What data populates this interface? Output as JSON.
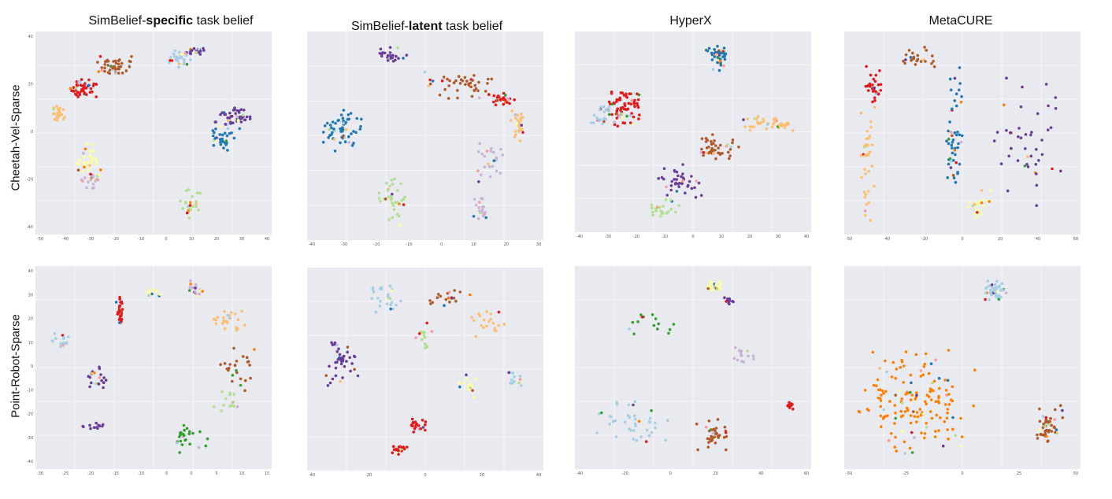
{
  "figure": {
    "columns": [
      {
        "prefix": "SimBelief-",
        "bold": "specific",
        "suffix": " task belief"
      },
      {
        "prefix": "SimBelief-",
        "bold": "latent",
        "suffix": " task belief"
      },
      {
        "prefix": "HyperX",
        "bold": "",
        "suffix": ""
      },
      {
        "prefix": "MetaCURE",
        "bold": "",
        "suffix": ""
      }
    ],
    "rows": [
      "Cheetah-Vel-Sparse",
      "Point-Robot-Sparse"
    ]
  },
  "palette": [
    "#a6cee3",
    "#1f78b4",
    "#b2df8a",
    "#33a02c",
    "#fb9a99",
    "#e31a1c",
    "#fdbf6f",
    "#ff7f00",
    "#cab2d6",
    "#6a3d9a",
    "#ffff99",
    "#b15928"
  ],
  "chart_data": [
    {
      "type": "scatter",
      "title": "Cheetah-Vel-Sparse / SimBelief-specific task belief",
      "xticks": [
        "-50",
        "-40",
        "-30",
        "-20",
        "-10",
        "0",
        "10",
        "20",
        "30",
        "40"
      ],
      "yticks": [
        "40",
        "20",
        "0",
        "-20",
        "-40"
      ],
      "clusters": [
        {
          "c": 11,
          "x": [
            -28,
            -10
          ],
          "y": [
            23,
            33
          ],
          "n": 45
        },
        {
          "c": 5,
          "x": [
            -40,
            -28
          ],
          "y": [
            12,
            22
          ],
          "n": 50
        },
        {
          "c": 6,
          "x": [
            -48,
            -42
          ],
          "y": [
            0,
            8
          ],
          "n": 25
        },
        {
          "c": 0,
          "x": [
            3,
            15
          ],
          "y": [
            27,
            37
          ],
          "n": 30
        },
        {
          "c": 9,
          "x": [
            10,
            20
          ],
          "y": [
            33,
            38
          ],
          "n": 20
        },
        {
          "c": 9,
          "x": [
            22,
            42
          ],
          "y": [
            -2,
            8
          ],
          "n": 45
        },
        {
          "c": 1,
          "x": [
            22,
            35
          ],
          "y": [
            -15,
            -2
          ],
          "n": 35
        },
        {
          "c": 10,
          "x": [
            -38,
            -25
          ],
          "y": [
            -30,
            -10
          ],
          "n": 35
        },
        {
          "c": 8,
          "x": [
            -35,
            -27
          ],
          "y": [
            -35,
            -25
          ],
          "n": 20
        },
        {
          "c": 2,
          "x": [
            8,
            18
          ],
          "y": [
            -50,
            -33
          ],
          "n": 25
        }
      ]
    },
    {
      "type": "scatter",
      "title": "Cheetah-Vel-Sparse / SimBelief-latent task belief",
      "xticks": [
        "-40",
        "-30",
        "-20",
        "-10",
        "0",
        "10",
        "20",
        "30"
      ],
      "yticks": [],
      "clusters": [
        {
          "c": 9,
          "x": [
            -22,
            -10
          ],
          "y": [
            32,
            40
          ],
          "n": 25
        },
        {
          "c": 11,
          "x": [
            -5,
            20
          ],
          "y": [
            15,
            28
          ],
          "n": 45
        },
        {
          "c": 5,
          "x": [
            18,
            28
          ],
          "y": [
            12,
            18
          ],
          "n": 25
        },
        {
          "c": 6,
          "x": [
            26,
            32
          ],
          "y": [
            -5,
            10
          ],
          "n": 25
        },
        {
          "c": 8,
          "x": [
            14,
            24
          ],
          "y": [
            -25,
            -5
          ],
          "n": 25
        },
        {
          "c": 8,
          "x": [
            12,
            18
          ],
          "y": [
            -45,
            -25
          ],
          "n": 20
        },
        {
          "c": 1,
          "x": [
            -42,
            -28
          ],
          "y": [
            -10,
            10
          ],
          "n": 60
        },
        {
          "c": 2,
          "x": [
            -22,
            -12
          ],
          "y": [
            -45,
            -20
          ],
          "n": 35
        }
      ]
    },
    {
      "type": "scatter",
      "title": "Cheetah-Vel-Sparse / HyperX",
      "xticks": [
        "-40",
        "-30",
        "-20",
        "-10",
        "0",
        "10",
        "20",
        "30",
        "40"
      ],
      "yticks": [],
      "clusters": [
        {
          "c": 1,
          "x": [
            5,
            15
          ],
          "y": [
            35,
            48
          ],
          "n": 40
        },
        {
          "c": 5,
          "x": [
            -35,
            -20
          ],
          "y": [
            5,
            25
          ],
          "n": 70
        },
        {
          "c": 0,
          "x": [
            -40,
            -32
          ],
          "y": [
            5,
            18
          ],
          "n": 25
        },
        {
          "c": 6,
          "x": [
            20,
            40
          ],
          "y": [
            2,
            10
          ],
          "n": 40
        },
        {
          "c": 11,
          "x": [
            0,
            20
          ],
          "y": [
            -15,
            0
          ],
          "n": 45
        },
        {
          "c": 9,
          "x": [
            -15,
            5
          ],
          "y": [
            -35,
            -15
          ],
          "n": 40
        },
        {
          "c": 2,
          "x": [
            -20,
            -5
          ],
          "y": [
            -45,
            -35
          ],
          "n": 25
        }
      ]
    },
    {
      "type": "scatter",
      "title": "Cheetah-Vel-Sparse / MetaCURE",
      "xticks": [
        "-50",
        "-40",
        "-20",
        "0",
        "20",
        "40",
        "60"
      ],
      "yticks": [],
      "clusters": [
        {
          "c": 5,
          "x": [
            -50,
            -40
          ],
          "y": [
            10,
            30
          ],
          "n": 30
        },
        {
          "c": 11,
          "x": [
            -30,
            -10
          ],
          "y": [
            30,
            40
          ],
          "n": 25
        },
        {
          "c": 1,
          "x": [
            -5,
            5
          ],
          "y": [
            -40,
            30
          ],
          "n": 50
        },
        {
          "c": 9,
          "x": [
            20,
            60
          ],
          "y": [
            -40,
            30
          ],
          "n": 45
        },
        {
          "c": 6,
          "x": [
            -52,
            -45
          ],
          "y": [
            -45,
            10
          ],
          "n": 35
        },
        {
          "c": 10,
          "x": [
            5,
            20
          ],
          "y": [
            -45,
            -30
          ],
          "n": 25
        }
      ]
    },
    {
      "type": "scatter",
      "title": "Point-Robot-Sparse / SimBelief-specific task belief",
      "xticks": [
        "-30",
        "-25",
        "-20",
        "-15",
        "-10",
        "-5",
        "0",
        "5",
        "10",
        "15"
      ],
      "yticks": [
        "40",
        "30",
        "20",
        "10",
        "0",
        "-10",
        "-20",
        "-30",
        "-40"
      ],
      "clusters": [
        {
          "c": 5,
          "x": [
            -15,
            -13
          ],
          "y": [
            18,
            32
          ],
          "n": 30
        },
        {
          "c": 10,
          "x": [
            -8,
            -4
          ],
          "y": [
            30,
            35
          ],
          "n": 12
        },
        {
          "c": 8,
          "x": [
            2,
            6
          ],
          "y": [
            30,
            38
          ],
          "n": 20
        },
        {
          "c": 6,
          "x": [
            8,
            16
          ],
          "y": [
            16,
            26
          ],
          "n": 25
        },
        {
          "c": 11,
          "x": [
            10,
            18
          ],
          "y": [
            -10,
            10
          ],
          "n": 25
        },
        {
          "c": 0,
          "x": [
            -30,
            -25
          ],
          "y": [
            8,
            15
          ],
          "n": 15
        },
        {
          "c": 9,
          "x": [
            -22,
            -17
          ],
          "y": [
            -10,
            0
          ],
          "n": 20
        },
        {
          "c": 9,
          "x": [
            -24,
            -18
          ],
          "y": [
            -28,
            -24
          ],
          "n": 12
        },
        {
          "c": 3,
          "x": [
            -4,
            8
          ],
          "y": [
            -38,
            -25
          ],
          "n": 25
        },
        {
          "c": 2,
          "x": [
            8,
            16
          ],
          "y": [
            -20,
            -10
          ],
          "n": 15
        }
      ]
    },
    {
      "type": "scatter",
      "title": "Point-Robot-Sparse / SimBelief-latent task belief",
      "xticks": [
        "-40",
        "-20",
        "0",
        "20",
        "40"
      ],
      "yticks": [],
      "clusters": [
        {
          "c": 9,
          "x": [
            -40,
            -25
          ],
          "y": [
            -20,
            0
          ],
          "n": 40
        },
        {
          "c": 0,
          "x": [
            -20,
            -5
          ],
          "y": [
            10,
            25
          ],
          "n": 25
        },
        {
          "c": 11,
          "x": [
            5,
            25
          ],
          "y": [
            15,
            22
          ],
          "n": 20
        },
        {
          "c": 6,
          "x": [
            25,
            40
          ],
          "y": [
            0,
            15
          ],
          "n": 20
        },
        {
          "c": 10,
          "x": [
            20,
            30
          ],
          "y": [
            -25,
            -15
          ],
          "n": 15
        },
        {
          "c": 0,
          "x": [
            40,
            50
          ],
          "y": [
            -20,
            -12
          ],
          "n": 12
        },
        {
          "c": 5,
          "x": [
            -2,
            5
          ],
          "y": [
            -40,
            -33
          ],
          "n": 20
        },
        {
          "c": 5,
          "x": [
            -10,
            -3
          ],
          "y": [
            -50,
            -45
          ],
          "n": 20
        },
        {
          "c": 2,
          "x": [
            0,
            8
          ],
          "y": [
            -5,
            10
          ],
          "n": 15
        }
      ]
    },
    {
      "type": "scatter",
      "title": "Point-Robot-Sparse / HyperX",
      "xticks": [
        "-40",
        "-20",
        "0",
        "20",
        "40",
        "60"
      ],
      "yticks": [],
      "clusters": [
        {
          "c": 10,
          "x": [
            15,
            25
          ],
          "y": [
            45,
            52
          ],
          "n": 25
        },
        {
          "c": 9,
          "x": [
            25,
            30
          ],
          "y": [
            38,
            44
          ],
          "n": 12
        },
        {
          "c": 8,
          "x": [
            30,
            40
          ],
          "y": [
            5,
            15
          ],
          "n": 15
        },
        {
          "c": 5,
          "x": [
            55,
            60
          ],
          "y": [
            -20,
            -15
          ],
          "n": 15
        },
        {
          "c": 11,
          "x": [
            10,
            30
          ],
          "y": [
            -45,
            -25
          ],
          "n": 35
        },
        {
          "c": 0,
          "x": [
            -40,
            0
          ],
          "y": [
            -40,
            -15
          ],
          "n": 40
        },
        {
          "c": 3,
          "x": [
            -30,
            10
          ],
          "y": [
            20,
            35
          ],
          "n": 15
        }
      ]
    },
    {
      "type": "scatter",
      "title": "Point-Robot-Sparse / MetaCURE",
      "xticks": [
        "-50",
        "-25",
        "0",
        "25",
        "50"
      ],
      "yticks": [],
      "clusters": [
        {
          "c": 0,
          "x": [
            20,
            35
          ],
          "y": [
            40,
            50
          ],
          "n": 45
        },
        {
          "c": 11,
          "x": [
            45,
            60
          ],
          "y": [
            -35,
            -15
          ],
          "n": 45
        },
        {
          "c": 7,
          "x": [
            -40,
            15
          ],
          "y": [
            -40,
            15
          ],
          "n": 160
        }
      ]
    }
  ]
}
